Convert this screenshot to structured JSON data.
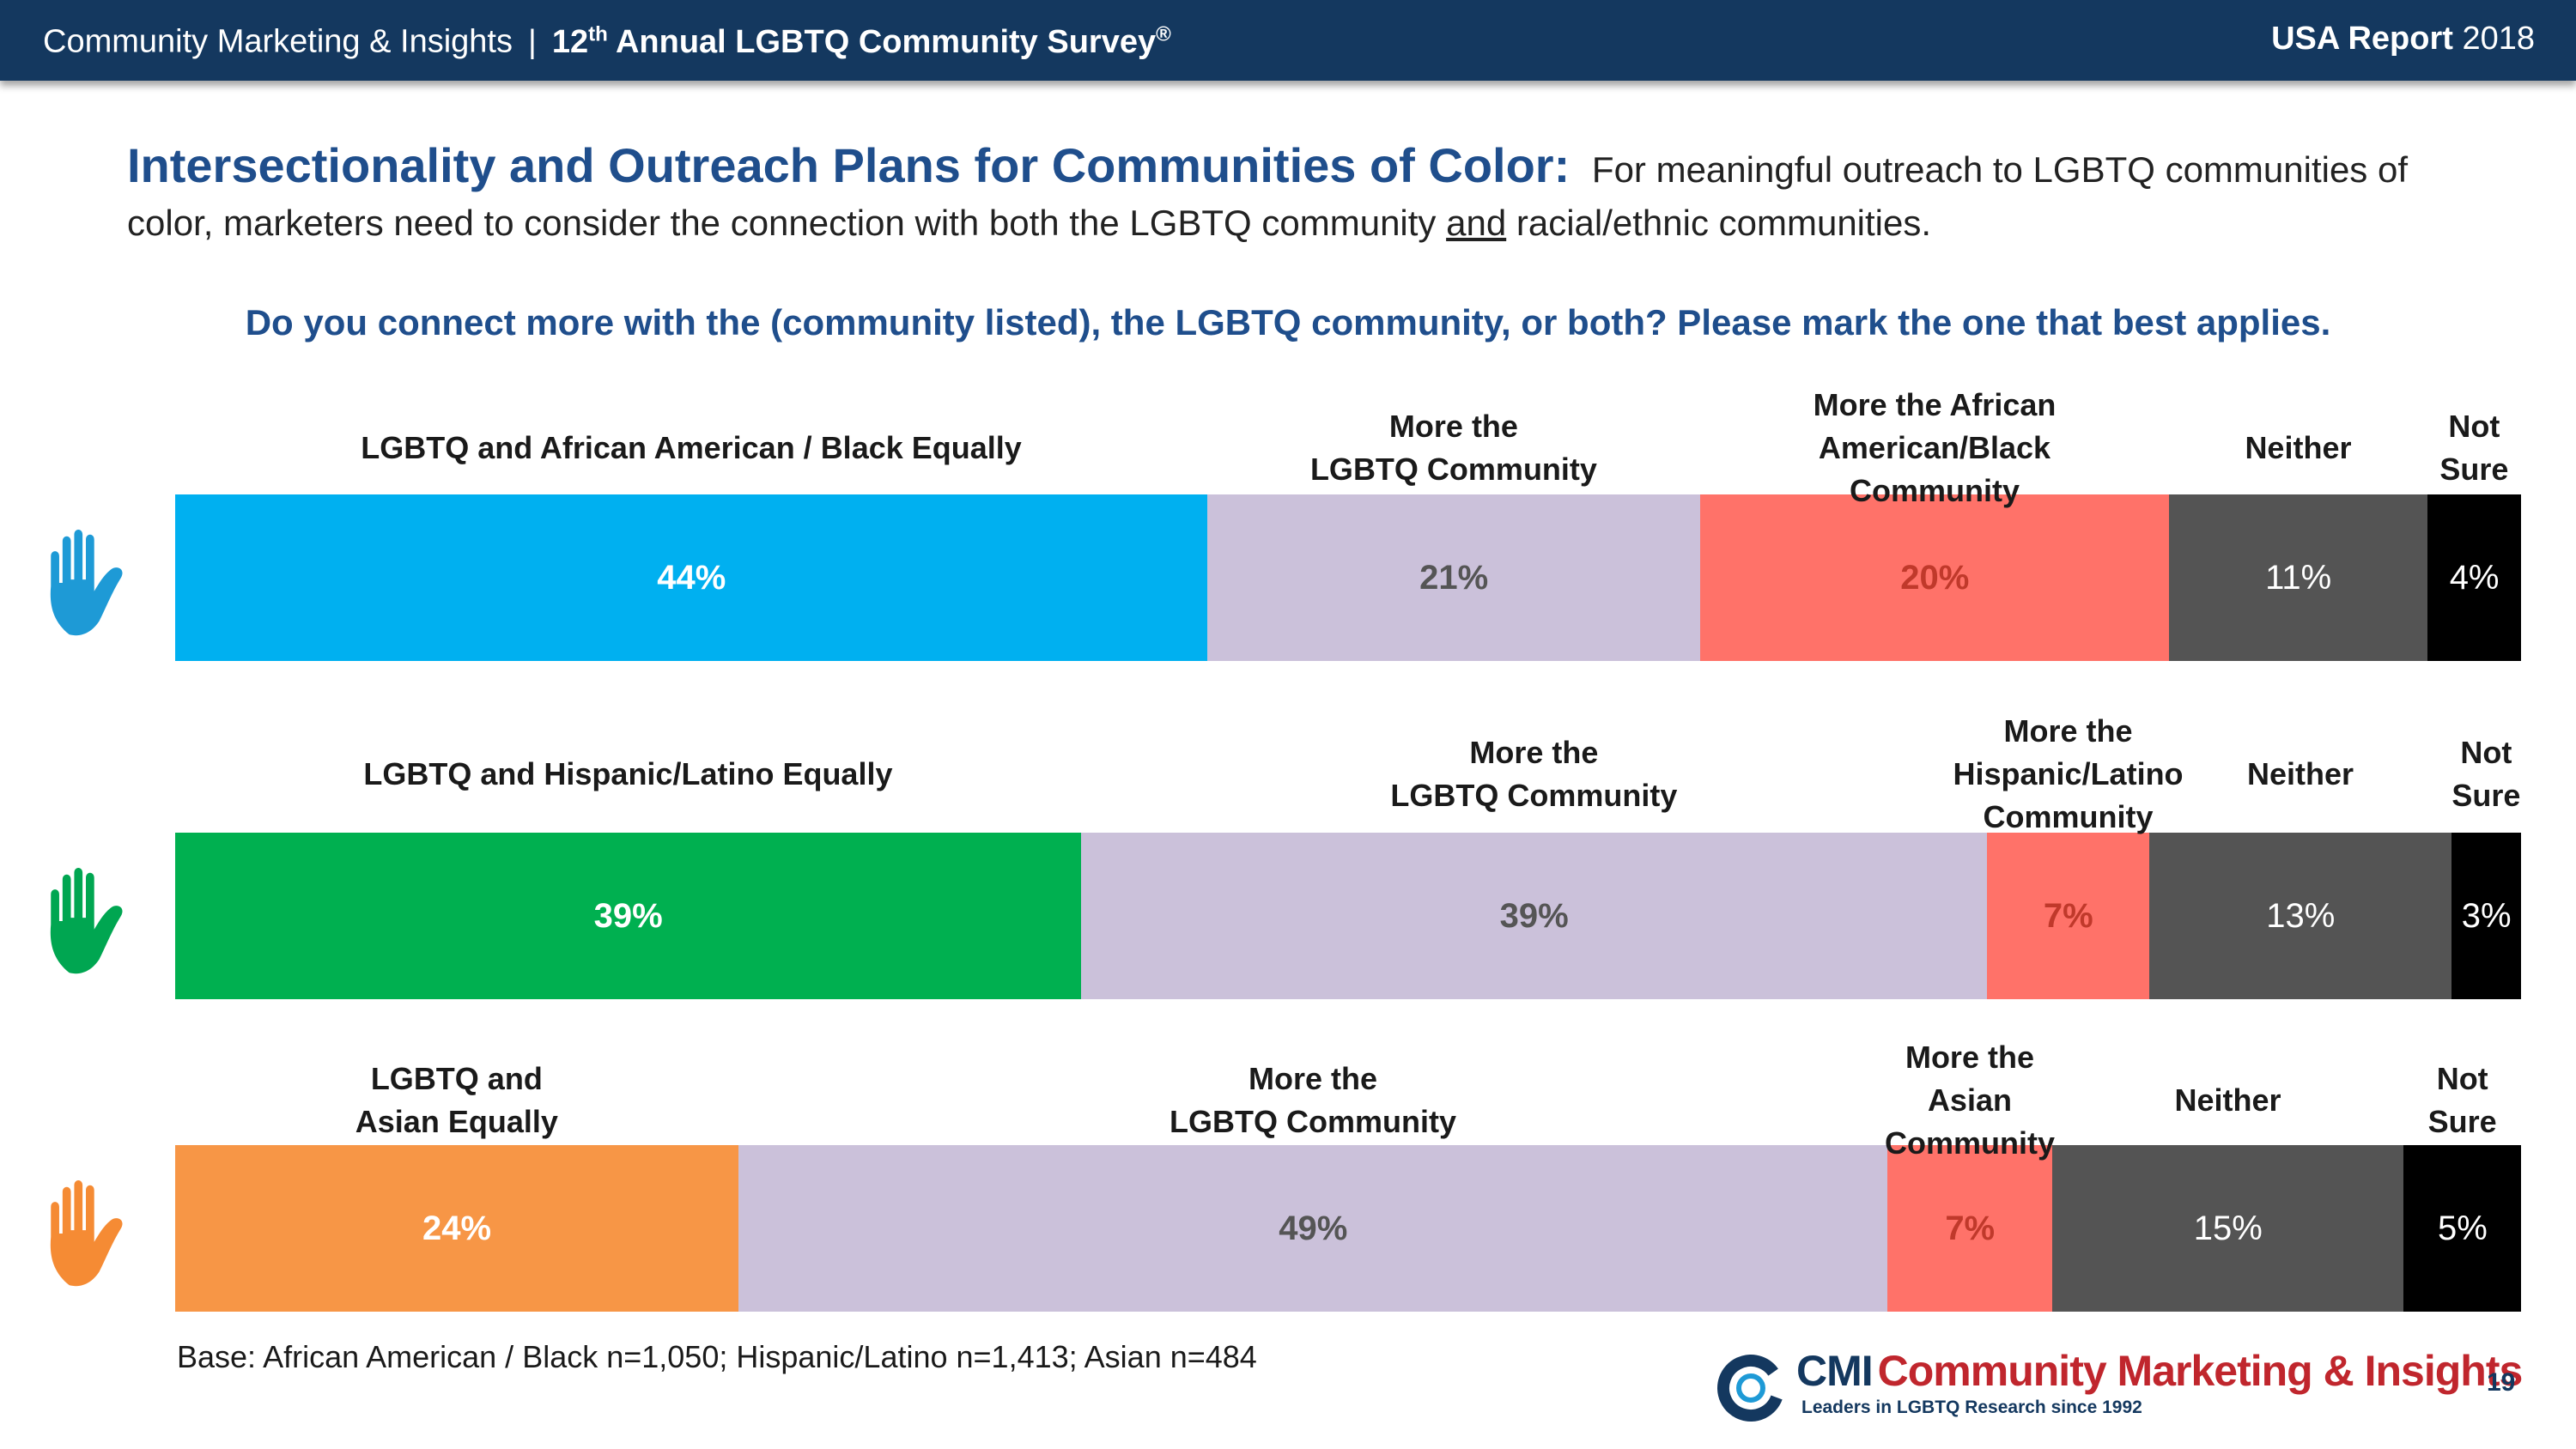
{
  "header": {
    "org": "Community Marketing & Insights",
    "separator": "|",
    "survey_prefix": "12",
    "survey_sup": "th",
    "survey_title": "Annual LGBTQ Community Survey",
    "survey_mark": "®",
    "report_bold": "USA Report",
    "report_year": "2018"
  },
  "headline": {
    "title": "Intersectionality and Outreach Plans for Communities of Color:",
    "text_before": "For meaningful outreach to LGBTQ communities of color, marketers need to consider the connection with both the LGBTQ community",
    "text_underlined": "and",
    "text_after": "racial/ethnic communities."
  },
  "question": "Do you connect more with the (community listed), the LGBTQ community, or both? Please mark the one that best applies.",
  "colors": {
    "header_bg": "#14385f",
    "title_blue": "#1f4e8c",
    "lgbtq_more": "#cbc1da",
    "ethnic_more": "#ff7269",
    "neither": "#545454",
    "not_sure": "#000000",
    "black_equal": "#00b0f0",
    "latino_equal": "#00b050",
    "asian_equal": "#f79646"
  },
  "chart_data": [
    {
      "type": "bar",
      "orientation": "horizontal-stacked-100",
      "group": "African American / Black",
      "hand_icon": "hand-icon",
      "hand_color": "#1e9ad6",
      "segments": [
        {
          "name": "LGBTQ and African American / Black Equally",
          "label_lines": [
            "LGBTQ and African American / Black Equally"
          ],
          "value": 44,
          "display": "44%",
          "color": "#00b0f0",
          "text_color": "#ffffff",
          "bold": true
        },
        {
          "name": "More the LGBTQ Community",
          "label_lines": [
            "More the",
            "LGBTQ Community"
          ],
          "value": 21,
          "display": "21%",
          "color": "#cbc1da",
          "text_color": "#555555",
          "bold": true
        },
        {
          "name": "More the African American/Black Community",
          "label_lines": [
            "More the African",
            "American/Black",
            "Community"
          ],
          "value": 20,
          "display": "20%",
          "color": "#ff7269",
          "text_color": "#c0392b",
          "bold": true
        },
        {
          "name": "Neither",
          "label_lines": [
            "Neither"
          ],
          "value": 11,
          "display": "11%",
          "color": "#545454",
          "text_color": "#ffffff",
          "bold": false
        },
        {
          "name": "Not Sure",
          "label_lines": [
            "Not",
            "Sure"
          ],
          "value": 4,
          "display": "4%",
          "color": "#000000",
          "text_color": "#ffffff",
          "bold": false
        }
      ]
    },
    {
      "type": "bar",
      "orientation": "horizontal-stacked-100",
      "group": "Hispanic/Latino",
      "hand_icon": "hand-icon",
      "hand_color": "#00a651",
      "segments": [
        {
          "name": "LGBTQ and Hispanic/Latino Equally",
          "label_lines": [
            "LGBTQ and Hispanic/Latino Equally"
          ],
          "value": 39,
          "display": "39%",
          "color": "#00b050",
          "text_color": "#ffffff",
          "bold": true
        },
        {
          "name": "More the LGBTQ Community",
          "label_lines": [
            "More the",
            "LGBTQ Community"
          ],
          "value": 39,
          "display": "39%",
          "color": "#cbc1da",
          "text_color": "#555555",
          "bold": true
        },
        {
          "name": "More the Hispanic/Latino Community",
          "label_lines": [
            "More the",
            "Hispanic/Latino",
            "Community"
          ],
          "value": 7,
          "display": "7%",
          "color": "#ff7269",
          "text_color": "#c0392b",
          "bold": true
        },
        {
          "name": "Neither",
          "label_lines": [
            "Neither"
          ],
          "value": 13,
          "display": "13%",
          "color": "#545454",
          "text_color": "#ffffff",
          "bold": false
        },
        {
          "name": "Not Sure",
          "label_lines": [
            "Not",
            "Sure"
          ],
          "value": 3,
          "display": "3%",
          "color": "#000000",
          "text_color": "#ffffff",
          "bold": false
        }
      ]
    },
    {
      "type": "bar",
      "orientation": "horizontal-stacked-100",
      "group": "Asian",
      "hand_icon": "hand-icon",
      "hand_color": "#f58b34",
      "segments": [
        {
          "name": "LGBTQ and Asian Equally",
          "label_lines": [
            "LGBTQ and",
            "Asian Equally"
          ],
          "value": 24,
          "display": "24%",
          "color": "#f79646",
          "text_color": "#ffffff",
          "bold": true
        },
        {
          "name": "More the LGBTQ Community",
          "label_lines": [
            "More the",
            "LGBTQ Community"
          ],
          "value": 49,
          "display": "49%",
          "color": "#cbc1da",
          "text_color": "#555555",
          "bold": true
        },
        {
          "name": "More the Asian Community",
          "label_lines": [
            "More the",
            "Asian",
            "Community"
          ],
          "value": 7,
          "display": "7%",
          "color": "#ff7269",
          "text_color": "#c0392b",
          "bold": true
        },
        {
          "name": "Neither",
          "label_lines": [
            "Neither"
          ],
          "value": 15,
          "display": "15%",
          "color": "#545454",
          "text_color": "#ffffff",
          "bold": false
        },
        {
          "name": "Not Sure",
          "label_lines": [
            "Not",
            "Sure"
          ],
          "value": 5,
          "display": "5%",
          "color": "#000000",
          "text_color": "#ffffff",
          "bold": false
        }
      ]
    }
  ],
  "footer": {
    "base": "Base: African American / Black n=1,050; Hispanic/Latino n=1,413; Asian n=484",
    "logo_cmi": "CMI",
    "logo_name": "Community Marketing & Insights",
    "logo_tagline": "Leaders in LGBTQ Research since 1992",
    "page_number": "19"
  }
}
